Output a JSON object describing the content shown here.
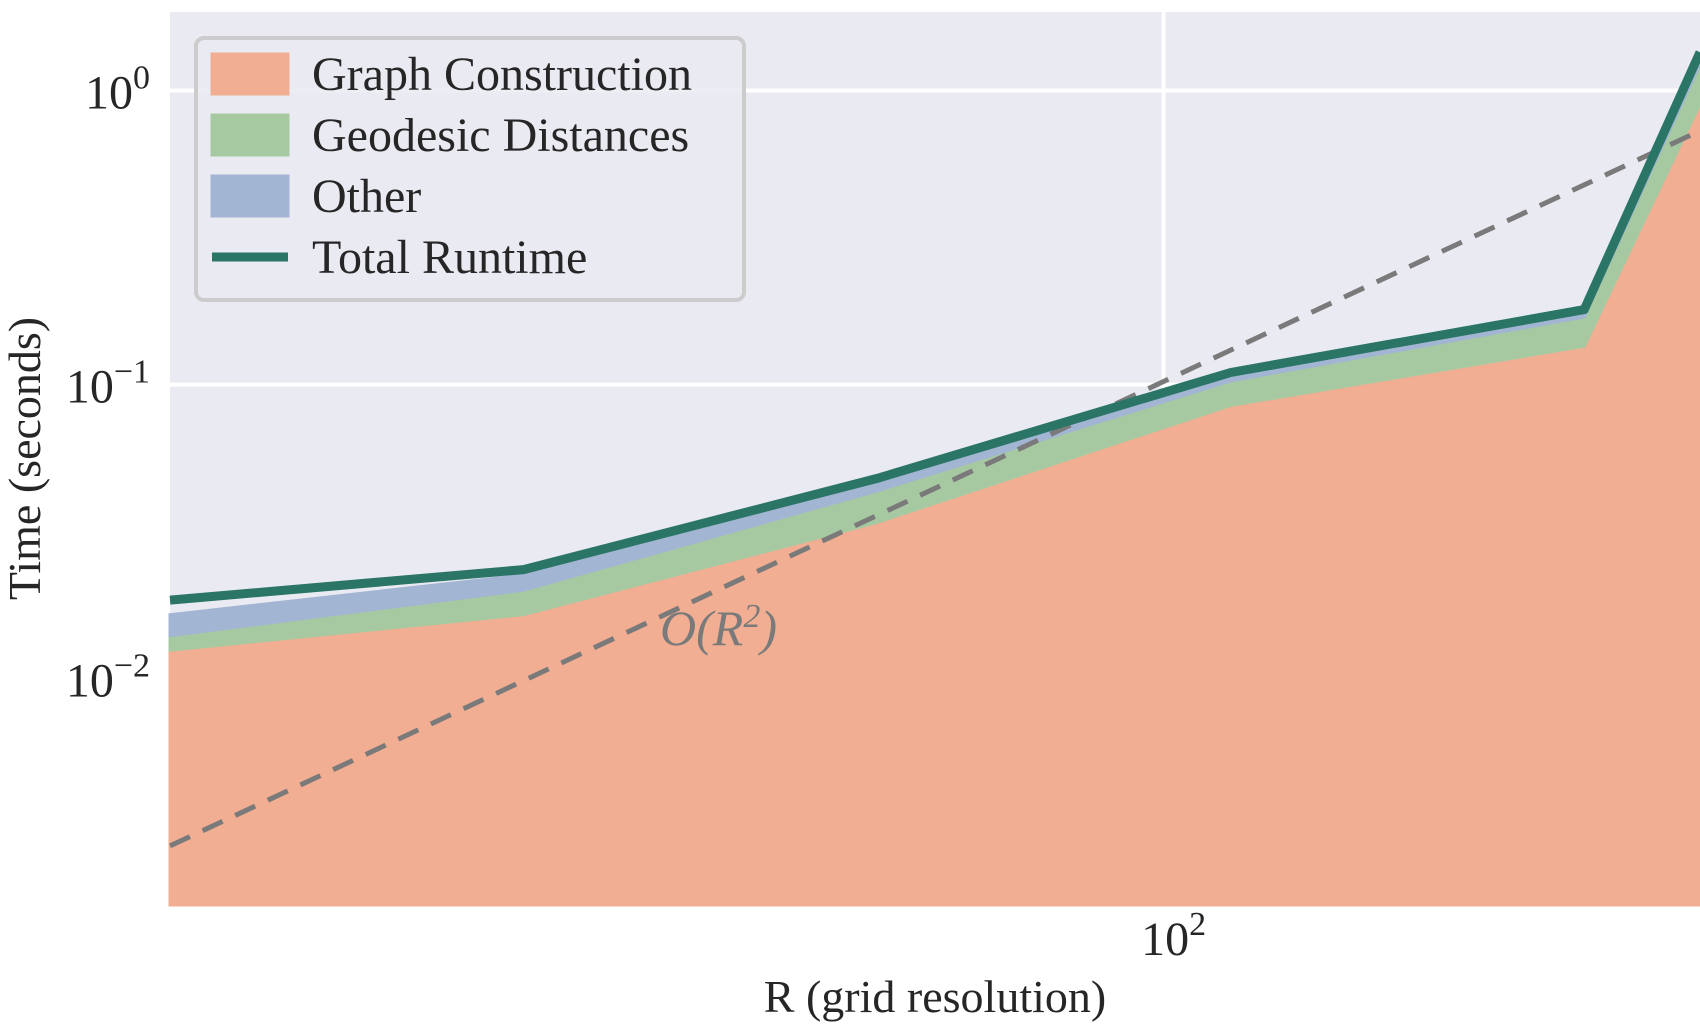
{
  "chart_data": {
    "type": "area",
    "xscale": "log",
    "yscale": "log",
    "xlim": [
      32,
      185
    ],
    "ylim": [
      0.0017,
      1.85
    ],
    "grid": true,
    "legend_position": "top-left",
    "xlabel": "R (grid resolution)",
    "ylabel": "Time (seconds)",
    "x": [
      32,
      48,
      72,
      108,
      162,
      185
    ],
    "stack_series": [
      {
        "name": "Graph Construction",
        "color": "#f2ae92",
        "values": [
          0.0125,
          0.0165,
          0.034,
          0.085,
          0.135,
          0.9
        ]
      },
      {
        "name": "Geodesic Distances",
        "color": "#a7c9a2",
        "values": [
          0.0015,
          0.0035,
          0.0095,
          0.018,
          0.035,
          0.33
        ]
      },
      {
        "name": "Other",
        "color": "#a2b5d2",
        "values": [
          0.0025,
          0.0025,
          0.0035,
          0.004,
          0.005,
          0.04
        ]
      }
    ],
    "line_series": [
      {
        "name": "Total Runtime",
        "color": "#2a7566",
        "values": [
          0.0185,
          0.0235,
          0.048,
          0.11,
          0.18,
          1.35
        ]
      }
    ],
    "reference_line": {
      "label_math": {
        "prefix": "O(R",
        "superscript": "2",
        "suffix": ")"
      },
      "x": [
        32,
        185
      ],
      "y": [
        0.0027,
        0.73
      ],
      "color": "#7a7a7a"
    },
    "x_ticks": [
      {
        "value": 100,
        "base": "10",
        "exp": "2"
      }
    ],
    "y_ticks": [
      {
        "value": 1,
        "base": "10",
        "exp": "0"
      },
      {
        "value": 0.1,
        "base": "10",
        "exp": "−1"
      },
      {
        "value": 0.01,
        "base": "10",
        "exp": "−2"
      }
    ]
  }
}
